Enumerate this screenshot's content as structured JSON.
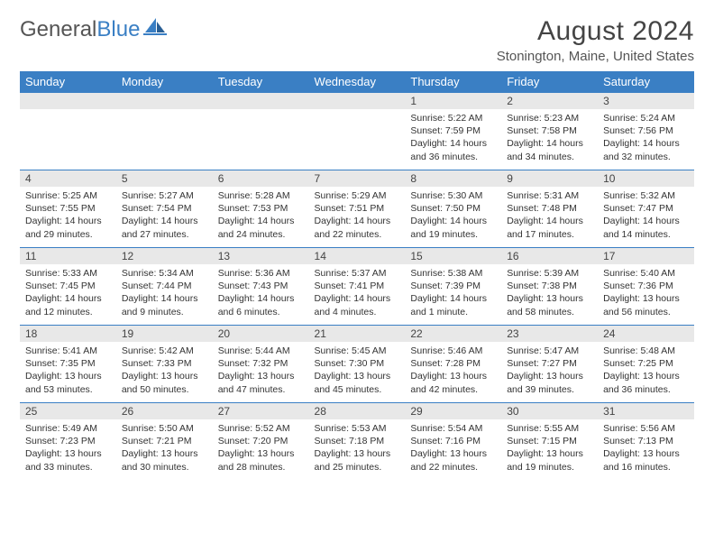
{
  "logo": {
    "text1": "General",
    "text2": "Blue"
  },
  "header": {
    "month_title": "August 2024",
    "location": "Stonington, Maine, United States"
  },
  "colors": {
    "brand": "#3a7fc4",
    "header_bg": "#3a7fc4",
    "daynum_bg": "#e8e8e8",
    "text": "#333333"
  },
  "calendar": {
    "day_names": [
      "Sunday",
      "Monday",
      "Tuesday",
      "Wednesday",
      "Thursday",
      "Friday",
      "Saturday"
    ],
    "weeks": [
      [
        null,
        null,
        null,
        null,
        {
          "n": "1",
          "sr": "Sunrise: 5:22 AM",
          "ss": "Sunset: 7:59 PM",
          "dl": "Daylight: 14 hours and 36 minutes."
        },
        {
          "n": "2",
          "sr": "Sunrise: 5:23 AM",
          "ss": "Sunset: 7:58 PM",
          "dl": "Daylight: 14 hours and 34 minutes."
        },
        {
          "n": "3",
          "sr": "Sunrise: 5:24 AM",
          "ss": "Sunset: 7:56 PM",
          "dl": "Daylight: 14 hours and 32 minutes."
        }
      ],
      [
        {
          "n": "4",
          "sr": "Sunrise: 5:25 AM",
          "ss": "Sunset: 7:55 PM",
          "dl": "Daylight: 14 hours and 29 minutes."
        },
        {
          "n": "5",
          "sr": "Sunrise: 5:27 AM",
          "ss": "Sunset: 7:54 PM",
          "dl": "Daylight: 14 hours and 27 minutes."
        },
        {
          "n": "6",
          "sr": "Sunrise: 5:28 AM",
          "ss": "Sunset: 7:53 PM",
          "dl": "Daylight: 14 hours and 24 minutes."
        },
        {
          "n": "7",
          "sr": "Sunrise: 5:29 AM",
          "ss": "Sunset: 7:51 PM",
          "dl": "Daylight: 14 hours and 22 minutes."
        },
        {
          "n": "8",
          "sr": "Sunrise: 5:30 AM",
          "ss": "Sunset: 7:50 PM",
          "dl": "Daylight: 14 hours and 19 minutes."
        },
        {
          "n": "9",
          "sr": "Sunrise: 5:31 AM",
          "ss": "Sunset: 7:48 PM",
          "dl": "Daylight: 14 hours and 17 minutes."
        },
        {
          "n": "10",
          "sr": "Sunrise: 5:32 AM",
          "ss": "Sunset: 7:47 PM",
          "dl": "Daylight: 14 hours and 14 minutes."
        }
      ],
      [
        {
          "n": "11",
          "sr": "Sunrise: 5:33 AM",
          "ss": "Sunset: 7:45 PM",
          "dl": "Daylight: 14 hours and 12 minutes."
        },
        {
          "n": "12",
          "sr": "Sunrise: 5:34 AM",
          "ss": "Sunset: 7:44 PM",
          "dl": "Daylight: 14 hours and 9 minutes."
        },
        {
          "n": "13",
          "sr": "Sunrise: 5:36 AM",
          "ss": "Sunset: 7:43 PM",
          "dl": "Daylight: 14 hours and 6 minutes."
        },
        {
          "n": "14",
          "sr": "Sunrise: 5:37 AM",
          "ss": "Sunset: 7:41 PM",
          "dl": "Daylight: 14 hours and 4 minutes."
        },
        {
          "n": "15",
          "sr": "Sunrise: 5:38 AM",
          "ss": "Sunset: 7:39 PM",
          "dl": "Daylight: 14 hours and 1 minute."
        },
        {
          "n": "16",
          "sr": "Sunrise: 5:39 AM",
          "ss": "Sunset: 7:38 PM",
          "dl": "Daylight: 13 hours and 58 minutes."
        },
        {
          "n": "17",
          "sr": "Sunrise: 5:40 AM",
          "ss": "Sunset: 7:36 PM",
          "dl": "Daylight: 13 hours and 56 minutes."
        }
      ],
      [
        {
          "n": "18",
          "sr": "Sunrise: 5:41 AM",
          "ss": "Sunset: 7:35 PM",
          "dl": "Daylight: 13 hours and 53 minutes."
        },
        {
          "n": "19",
          "sr": "Sunrise: 5:42 AM",
          "ss": "Sunset: 7:33 PM",
          "dl": "Daylight: 13 hours and 50 minutes."
        },
        {
          "n": "20",
          "sr": "Sunrise: 5:44 AM",
          "ss": "Sunset: 7:32 PM",
          "dl": "Daylight: 13 hours and 47 minutes."
        },
        {
          "n": "21",
          "sr": "Sunrise: 5:45 AM",
          "ss": "Sunset: 7:30 PM",
          "dl": "Daylight: 13 hours and 45 minutes."
        },
        {
          "n": "22",
          "sr": "Sunrise: 5:46 AM",
          "ss": "Sunset: 7:28 PM",
          "dl": "Daylight: 13 hours and 42 minutes."
        },
        {
          "n": "23",
          "sr": "Sunrise: 5:47 AM",
          "ss": "Sunset: 7:27 PM",
          "dl": "Daylight: 13 hours and 39 minutes."
        },
        {
          "n": "24",
          "sr": "Sunrise: 5:48 AM",
          "ss": "Sunset: 7:25 PM",
          "dl": "Daylight: 13 hours and 36 minutes."
        }
      ],
      [
        {
          "n": "25",
          "sr": "Sunrise: 5:49 AM",
          "ss": "Sunset: 7:23 PM",
          "dl": "Daylight: 13 hours and 33 minutes."
        },
        {
          "n": "26",
          "sr": "Sunrise: 5:50 AM",
          "ss": "Sunset: 7:21 PM",
          "dl": "Daylight: 13 hours and 30 minutes."
        },
        {
          "n": "27",
          "sr": "Sunrise: 5:52 AM",
          "ss": "Sunset: 7:20 PM",
          "dl": "Daylight: 13 hours and 28 minutes."
        },
        {
          "n": "28",
          "sr": "Sunrise: 5:53 AM",
          "ss": "Sunset: 7:18 PM",
          "dl": "Daylight: 13 hours and 25 minutes."
        },
        {
          "n": "29",
          "sr": "Sunrise: 5:54 AM",
          "ss": "Sunset: 7:16 PM",
          "dl": "Daylight: 13 hours and 22 minutes."
        },
        {
          "n": "30",
          "sr": "Sunrise: 5:55 AM",
          "ss": "Sunset: 7:15 PM",
          "dl": "Daylight: 13 hours and 19 minutes."
        },
        {
          "n": "31",
          "sr": "Sunrise: 5:56 AM",
          "ss": "Sunset: 7:13 PM",
          "dl": "Daylight: 13 hours and 16 minutes."
        }
      ]
    ]
  }
}
